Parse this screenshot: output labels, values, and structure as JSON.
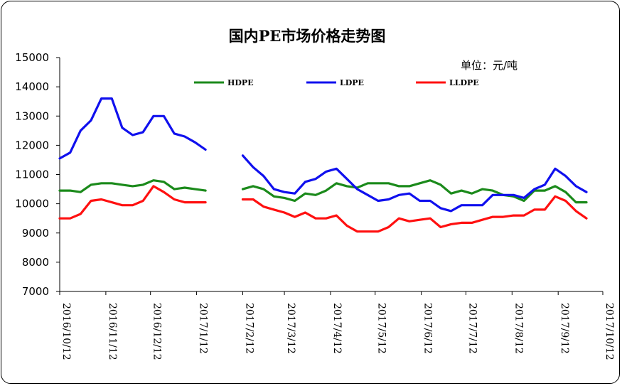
{
  "chart_data": {
    "type": "line",
    "title": "国内PE市场价格走势图",
    "unit": "单位：元/吨",
    "ylim": [
      7000,
      15000
    ],
    "yticks": [
      7000,
      8000,
      9000,
      10000,
      11000,
      12000,
      13000,
      14000,
      15000
    ],
    "xlim": [
      "2016-10-12",
      "2017-10-12"
    ],
    "xticks": [
      "2016/10/12",
      "2016/11/12",
      "2016/12/12",
      "2017/1/12",
      "2017/2/12",
      "2017/3/12",
      "2017/4/12",
      "2017/5/12",
      "2017/6/12",
      "2017/7/12",
      "2017/8/12",
      "2017/9/12",
      "2017/10/12"
    ],
    "legend_position": "top",
    "grid": false,
    "colors": {
      "HDPE": "#1b8a1b",
      "LDPE": "#1010ee",
      "LLDPE": "#ff1010"
    },
    "series": [
      {
        "name": "HDPE",
        "segments": [
          [
            [
              "2016-10-12",
              10450
            ],
            [
              "2016-10-19",
              10450
            ],
            [
              "2016-10-26",
              10400
            ],
            [
              "2016-11-02",
              10650
            ],
            [
              "2016-11-09",
              10700
            ],
            [
              "2016-11-16",
              10700
            ],
            [
              "2016-11-23",
              10650
            ],
            [
              "2016-11-30",
              10600
            ],
            [
              "2016-12-07",
              10650
            ],
            [
              "2016-12-14",
              10800
            ],
            [
              "2016-12-21",
              10750
            ],
            [
              "2016-12-28",
              10500
            ],
            [
              "2017-01-04",
              10550
            ],
            [
              "2017-01-11",
              10500
            ],
            [
              "2017-01-18",
              10450
            ]
          ],
          [
            [
              "2017-02-12",
              10500
            ],
            [
              "2017-02-19",
              10600
            ],
            [
              "2017-02-26",
              10500
            ],
            [
              "2017-03-05",
              10250
            ],
            [
              "2017-03-12",
              10200
            ],
            [
              "2017-03-19",
              10100
            ],
            [
              "2017-03-26",
              10350
            ],
            [
              "2017-04-02",
              10300
            ],
            [
              "2017-04-09",
              10450
            ],
            [
              "2017-04-16",
              10700
            ],
            [
              "2017-04-23",
              10600
            ],
            [
              "2017-04-30",
              10550
            ],
            [
              "2017-05-07",
              10700
            ],
            [
              "2017-05-14",
              10700
            ],
            [
              "2017-05-21",
              10700
            ],
            [
              "2017-05-28",
              10600
            ],
            [
              "2017-06-04",
              10600
            ],
            [
              "2017-06-11",
              10700
            ],
            [
              "2017-06-18",
              10800
            ],
            [
              "2017-06-25",
              10650
            ],
            [
              "2017-07-02",
              10350
            ],
            [
              "2017-07-09",
              10450
            ],
            [
              "2017-07-16",
              10350
            ],
            [
              "2017-07-23",
              10500
            ],
            [
              "2017-07-30",
              10450
            ],
            [
              "2017-08-06",
              10300
            ],
            [
              "2017-08-13",
              10250
            ],
            [
              "2017-08-20",
              10100
            ],
            [
              "2017-08-27",
              10450
            ],
            [
              "2017-09-03",
              10450
            ],
            [
              "2017-09-10",
              10600
            ],
            [
              "2017-09-17",
              10400
            ],
            [
              "2017-09-24",
              10050
            ],
            [
              "2017-10-01",
              10050
            ]
          ]
        ]
      },
      {
        "name": "LDPE",
        "segments": [
          [
            [
              "2016-10-12",
              11550
            ],
            [
              "2016-10-19",
              11750
            ],
            [
              "2016-10-26",
              12500
            ],
            [
              "2016-11-02",
              12850
            ],
            [
              "2016-11-09",
              13600
            ],
            [
              "2016-11-16",
              13600
            ],
            [
              "2016-11-23",
              12600
            ],
            [
              "2016-11-30",
              12350
            ],
            [
              "2016-12-07",
              12450
            ],
            [
              "2016-12-14",
              13000
            ],
            [
              "2016-12-21",
              13000
            ],
            [
              "2016-12-28",
              12400
            ],
            [
              "2017-01-04",
              12300
            ],
            [
              "2017-01-11",
              12100
            ],
            [
              "2017-01-18",
              11850
            ]
          ],
          [
            [
              "2017-02-12",
              11650
            ],
            [
              "2017-02-19",
              11250
            ],
            [
              "2017-02-26",
              10950
            ],
            [
              "2017-03-05",
              10500
            ],
            [
              "2017-03-12",
              10400
            ],
            [
              "2017-03-19",
              10350
            ],
            [
              "2017-03-26",
              10750
            ],
            [
              "2017-04-02",
              10850
            ],
            [
              "2017-04-09",
              11100
            ],
            [
              "2017-04-16",
              11200
            ],
            [
              "2017-04-23",
              10850
            ],
            [
              "2017-04-30",
              10500
            ],
            [
              "2017-05-07",
              10300
            ],
            [
              "2017-05-14",
              10100
            ],
            [
              "2017-05-21",
              10150
            ],
            [
              "2017-05-28",
              10300
            ],
            [
              "2017-06-04",
              10350
            ],
            [
              "2017-06-11",
              10100
            ],
            [
              "2017-06-18",
              10100
            ],
            [
              "2017-06-25",
              9850
            ],
            [
              "2017-07-02",
              9750
            ],
            [
              "2017-07-09",
              9950
            ],
            [
              "2017-07-16",
              9950
            ],
            [
              "2017-07-23",
              9950
            ],
            [
              "2017-07-30",
              10300
            ],
            [
              "2017-08-06",
              10300
            ],
            [
              "2017-08-13",
              10300
            ],
            [
              "2017-08-20",
              10200
            ],
            [
              "2017-08-27",
              10500
            ],
            [
              "2017-09-03",
              10650
            ],
            [
              "2017-09-10",
              11200
            ],
            [
              "2017-09-17",
              10950
            ],
            [
              "2017-09-24",
              10600
            ],
            [
              "2017-10-01",
              10400
            ]
          ]
        ]
      },
      {
        "name": "LLDPE",
        "segments": [
          [
            [
              "2016-10-12",
              9500
            ],
            [
              "2016-10-19",
              9500
            ],
            [
              "2016-10-26",
              9650
            ],
            [
              "2016-11-02",
              10100
            ],
            [
              "2016-11-09",
              10150
            ],
            [
              "2016-11-16",
              10050
            ],
            [
              "2016-11-23",
              9950
            ],
            [
              "2016-11-30",
              9950
            ],
            [
              "2016-12-07",
              10100
            ],
            [
              "2016-12-14",
              10600
            ],
            [
              "2016-12-21",
              10400
            ],
            [
              "2016-12-28",
              10150
            ],
            [
              "2017-01-04",
              10050
            ],
            [
              "2017-01-11",
              10050
            ],
            [
              "2017-01-18",
              10050
            ]
          ],
          [
            [
              "2017-02-12",
              10150
            ],
            [
              "2017-02-19",
              10150
            ],
            [
              "2017-02-26",
              9900
            ],
            [
              "2017-03-05",
              9800
            ],
            [
              "2017-03-12",
              9700
            ],
            [
              "2017-03-19",
              9550
            ],
            [
              "2017-03-26",
              9700
            ],
            [
              "2017-04-02",
              9500
            ],
            [
              "2017-04-09",
              9500
            ],
            [
              "2017-04-16",
              9600
            ],
            [
              "2017-04-23",
              9250
            ],
            [
              "2017-04-30",
              9050
            ],
            [
              "2017-05-07",
              9050
            ],
            [
              "2017-05-14",
              9050
            ],
            [
              "2017-05-21",
              9200
            ],
            [
              "2017-05-28",
              9500
            ],
            [
              "2017-06-04",
              9400
            ],
            [
              "2017-06-11",
              9450
            ],
            [
              "2017-06-18",
              9500
            ],
            [
              "2017-06-25",
              9200
            ],
            [
              "2017-07-02",
              9300
            ],
            [
              "2017-07-09",
              9350
            ],
            [
              "2017-07-16",
              9350
            ],
            [
              "2017-07-23",
              9450
            ],
            [
              "2017-07-30",
              9550
            ],
            [
              "2017-08-06",
              9550
            ],
            [
              "2017-08-13",
              9600
            ],
            [
              "2017-08-20",
              9600
            ],
            [
              "2017-08-27",
              9800
            ],
            [
              "2017-09-03",
              9800
            ],
            [
              "2017-09-10",
              10250
            ],
            [
              "2017-09-17",
              10100
            ],
            [
              "2017-09-24",
              9750
            ],
            [
              "2017-10-01",
              9500
            ]
          ]
        ]
      }
    ]
  }
}
